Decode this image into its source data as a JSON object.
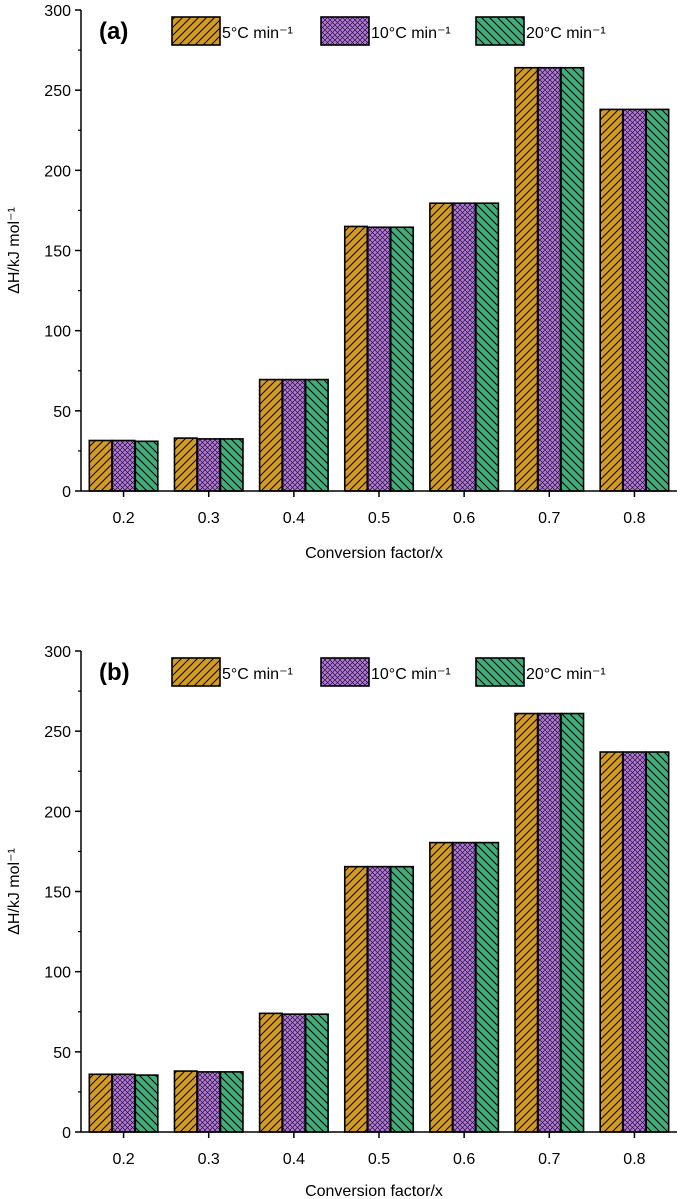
{
  "colors": {
    "s5": "#d29c22",
    "s10": "#b07ad8",
    "s20": "#3fae7a"
  },
  "chart_data": [
    {
      "panel": "(a)",
      "type": "bar",
      "categories": [
        "0.2",
        "0.3",
        "0.4",
        "0.5",
        "0.6",
        "0.7",
        "0.8"
      ],
      "xlabel": "Conversion factor/x",
      "ylabel": "ΔH/kJ mol⁻¹",
      "ylim": [
        0,
        300
      ],
      "yticks": [
        "0",
        "50",
        "100",
        "150",
        "200",
        "250",
        "300"
      ],
      "legend_position": "top",
      "series": [
        {
          "name": "5°C min⁻¹",
          "values": [
            31.5,
            33,
            69.5,
            165,
            179.5,
            264,
            238
          ],
          "pattern": "diagonal"
        },
        {
          "name": "10°C min⁻¹",
          "values": [
            31.5,
            32.5,
            69.5,
            164.5,
            179.5,
            264,
            238
          ],
          "pattern": "crosshatch"
        },
        {
          "name": "20°C min⁻¹",
          "values": [
            31,
            32.5,
            69.5,
            164.5,
            179.5,
            264,
            238
          ],
          "pattern": "backdiagonal"
        }
      ]
    },
    {
      "panel": "(b)",
      "type": "bar",
      "categories": [
        "0.2",
        "0.3",
        "0.4",
        "0.5",
        "0.6",
        "0.7",
        "0.8"
      ],
      "xlabel": "Conversion factor/x",
      "ylabel": "ΔH/kJ mol⁻¹",
      "ylim": [
        0,
        300
      ],
      "yticks": [
        "0",
        "50",
        "100",
        "150",
        "200",
        "250",
        "300"
      ],
      "legend_position": "top",
      "series": [
        {
          "name": "5°C min⁻¹",
          "values": [
            36,
            38,
            74,
            165.5,
            180.5,
            261,
            237
          ],
          "pattern": "diagonal"
        },
        {
          "name": "10°C min⁻¹",
          "values": [
            36,
            37.5,
            73.5,
            165.5,
            180.5,
            261,
            237
          ],
          "pattern": "crosshatch"
        },
        {
          "name": "20°C min⁻¹",
          "values": [
            35.5,
            37.5,
            73.5,
            165.5,
            180.5,
            261,
            237
          ],
          "pattern": "backdiagonal"
        }
      ]
    }
  ]
}
